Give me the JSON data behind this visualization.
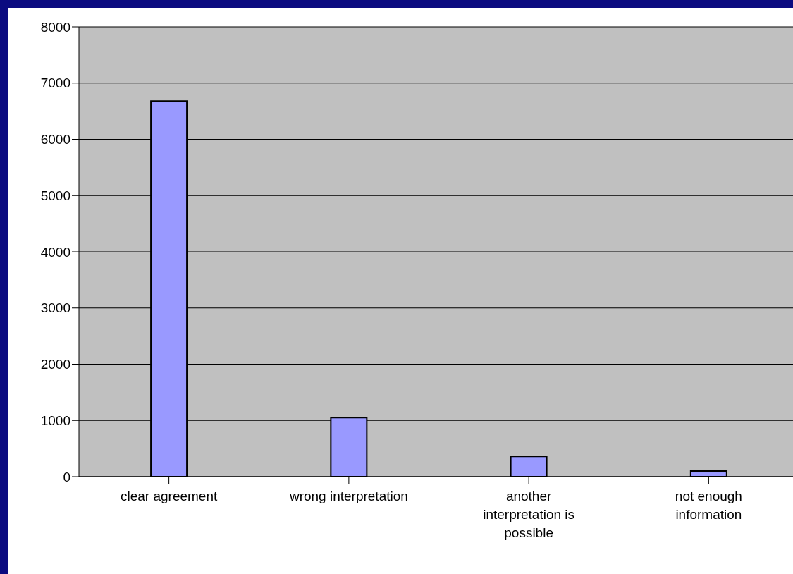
{
  "chart_data": {
    "type": "bar",
    "categories": [
      "clear agreement",
      "wrong interpretation",
      "another interpretation is possible",
      "not enough information"
    ],
    "values": [
      6680,
      1050,
      360,
      100
    ],
    "color": "#9999ff",
    "ylim": [
      0,
      8000
    ],
    "yticks": [
      0,
      1000,
      2000,
      3000,
      4000,
      5000,
      6000,
      7000,
      8000
    ],
    "grid": "y",
    "legend": false
  }
}
